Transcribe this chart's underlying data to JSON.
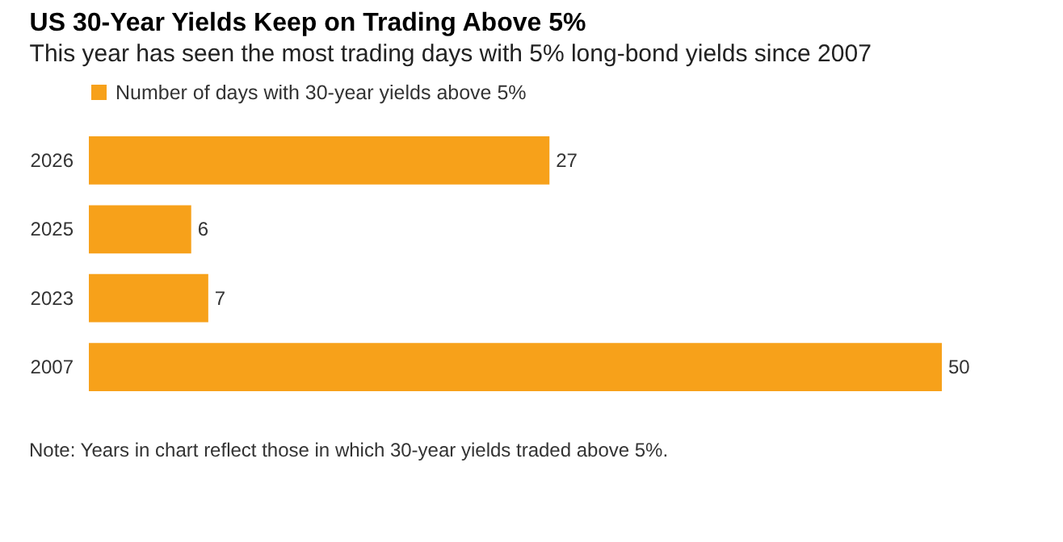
{
  "chart_data": {
    "type": "bar",
    "orientation": "horizontal",
    "title": "US 30-Year Yields Keep on Trading Above 5%",
    "subtitle": "This year has seen the most trading days with 5% long-bond yields since 2007",
    "categories": [
      "2026",
      "2025",
      "2023",
      "2007"
    ],
    "series": [
      {
        "name": "Number of days with 30-year yields above 5%",
        "color": "#f7a11a",
        "values": [
          27,
          6,
          7,
          50
        ]
      }
    ],
    "data_labels": true,
    "legend": "top left",
    "grid": false,
    "annotations": [
      "Note: Years in chart reflect those in which 30-year yields traded above 5%."
    ]
  }
}
